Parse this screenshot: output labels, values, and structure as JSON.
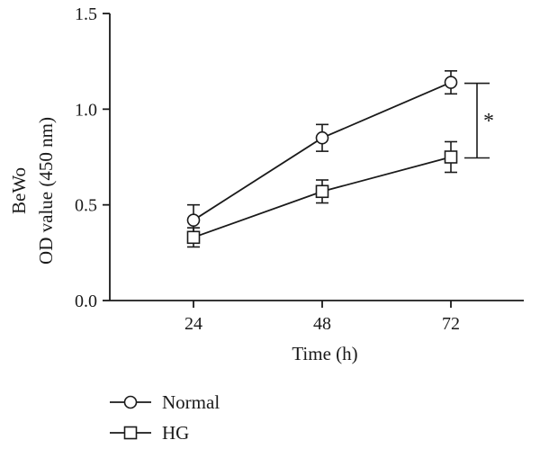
{
  "chart_data": {
    "type": "line",
    "ylabel_lines": [
      "BeWo",
      "OD value (450 nm)"
    ],
    "xlabel": "Time (h)",
    "x": [
      24,
      48,
      72
    ],
    "x_tick_labels": [
      "24",
      "48",
      "72"
    ],
    "ylim": [
      0,
      1.5
    ],
    "y_ticks": [
      0,
      0.5,
      1.0,
      1.5
    ],
    "y_tick_labels": [
      "0.0",
      "0.5",
      "1.0",
      "1.5"
    ],
    "grid": false,
    "legend_position": "bottom-left",
    "series": [
      {
        "name": "Normal",
        "marker": "circle",
        "values": [
          0.42,
          0.85,
          1.14
        ],
        "errors": [
          0.08,
          0.07,
          0.06
        ]
      },
      {
        "name": "HG",
        "marker": "square",
        "values": [
          0.33,
          0.57,
          0.75
        ],
        "errors": [
          0.05,
          0.06,
          0.08
        ]
      }
    ],
    "annotation": "*",
    "colors": {
      "line": "#1a1a1a",
      "marker_fill": "#ffffff"
    }
  }
}
